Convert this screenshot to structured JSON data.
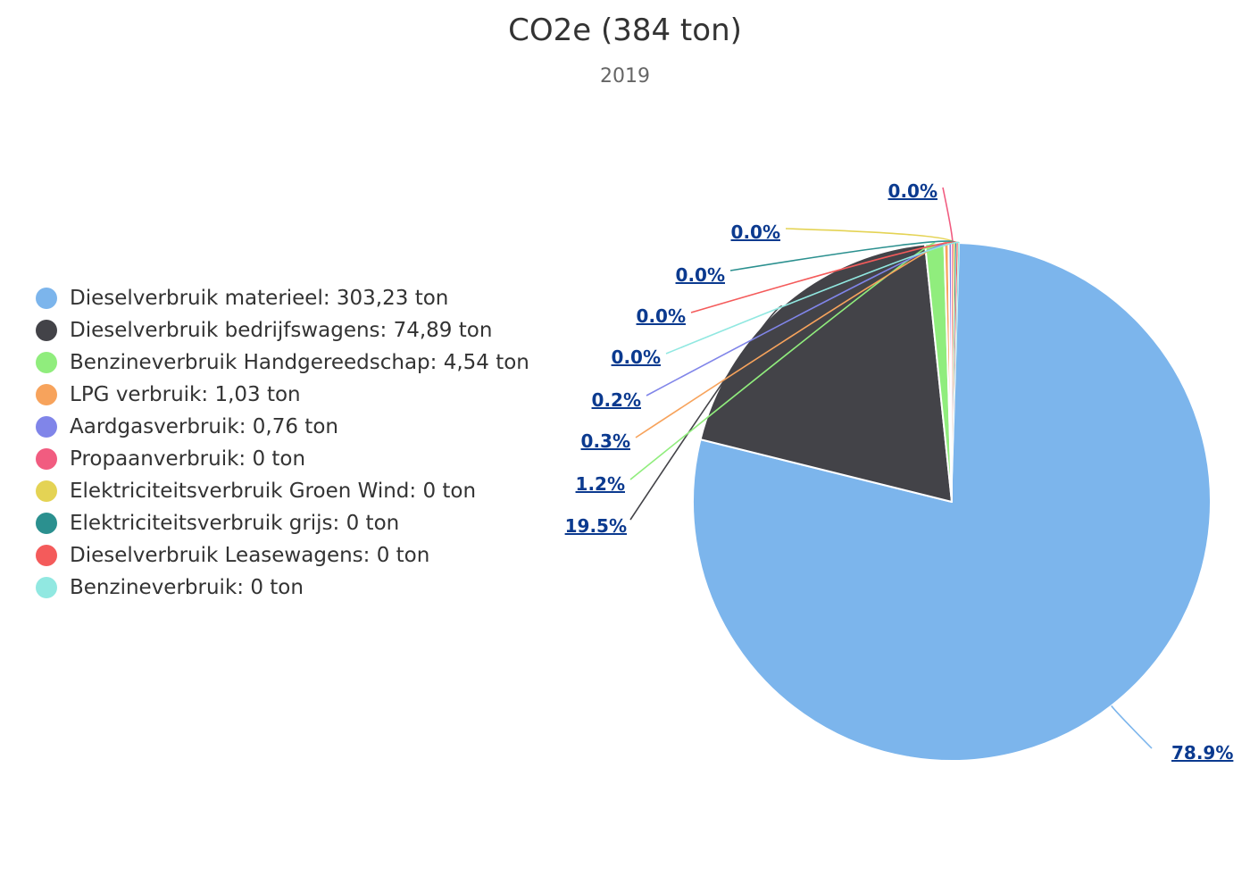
{
  "chart_data": {
    "type": "pie",
    "title": "CO2e (384 ton)",
    "subtitle": "2019",
    "legend_position": "left",
    "series": [
      {
        "name": "Dieselverbruik materieel",
        "legend": "Dieselverbruik materieel: 303,23 ton",
        "value": 303.23,
        "percent_label": "78.9%",
        "color": "#7cb5ec"
      },
      {
        "name": "Dieselverbruik bedrijfswagens",
        "legend": "Dieselverbruik bedrijfswagens: 74,89 ton",
        "value": 74.89,
        "percent_label": "19.5%",
        "color": "#434348"
      },
      {
        "name": "Benzineverbruik Handgereedschap",
        "legend": "Benzineverbruik Handgereedschap: 4,54 ton",
        "value": 4.54,
        "percent_label": "1.2%",
        "color": "#90ed7d"
      },
      {
        "name": "LPG verbruik",
        "legend": "LPG verbruik: 1,03 ton",
        "value": 1.03,
        "percent_label": "0.3%",
        "color": "#f7a35c"
      },
      {
        "name": "Aardgasverbruik",
        "legend": "Aardgasverbruik: 0,76 ton",
        "value": 0.76,
        "percent_label": "0.2%",
        "color": "#8085e9"
      },
      {
        "name": "Propaanverbruik",
        "legend": "Propaanverbruik: 0 ton",
        "value": 0,
        "percent_label": "0.0%",
        "color": "#f15c80"
      },
      {
        "name": "Elektriciteitsverbruik Groen Wind",
        "legend": "Elektriciteitsverbruik Groen Wind: 0 ton",
        "value": 0,
        "percent_label": "0.0%",
        "color": "#e4d354"
      },
      {
        "name": "Elektriciteitsverbruik grijs",
        "legend": "Elektriciteitsverbruik grijs: 0 ton",
        "value": 0,
        "percent_label": "0.0%",
        "color": "#2b908f"
      },
      {
        "name": "Dieselverbruik Leasewagens",
        "legend": "Dieselverbruik Leasewagens: 0 ton",
        "value": 0,
        "percent_label": "0.0%",
        "color": "#f45b5b"
      },
      {
        "name": "Benzineverbruik",
        "legend": "Benzineverbruik: 0 ton",
        "value": 0,
        "percent_label": "0.0%",
        "color": "#91e8e1"
      }
    ]
  }
}
